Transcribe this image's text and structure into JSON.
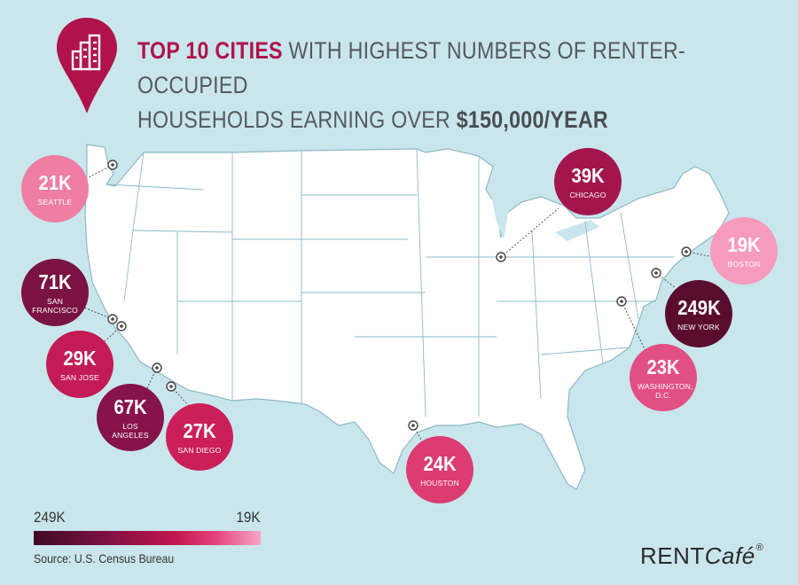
{
  "title": {
    "highlight": "TOP 10 CITIES",
    "line1_rest": " WITH HIGHEST NUMBERS OF RENTER-OCCUPIED",
    "line2_start": "HOUSEHOLDS EARNING OVER ",
    "line2_bold": "$150,000/YEAR"
  },
  "header_icon": "building-pin-icon",
  "cities": [
    {
      "id": "seattle",
      "value": "21K",
      "label": "SEATTLE",
      "color": "#ef7ea4"
    },
    {
      "id": "san-francisco",
      "value": "71K",
      "label": "SAN FRANCISCO",
      "color": "#7b1342"
    },
    {
      "id": "san-jose",
      "value": "29K",
      "label": "SAN JOSE",
      "color": "#c31b56"
    },
    {
      "id": "los-angeles",
      "value": "67K",
      "label": "LOS ANGELES",
      "color": "#86134a"
    },
    {
      "id": "san-diego",
      "value": "27K",
      "label": "SAN DIEGO",
      "color": "#cc1f5a"
    },
    {
      "id": "chicago",
      "value": "39K",
      "label": "CHICAGO",
      "color": "#a3164d"
    },
    {
      "id": "houston",
      "value": "24K",
      "label": "HOUSTON",
      "color": "#dc3c71"
    },
    {
      "id": "boston",
      "value": "19K",
      "label": "BOSTON",
      "color": "#f79bbd"
    },
    {
      "id": "new-york",
      "value": "249K",
      "label": "NEW YORK",
      "color": "#5a0c2f"
    },
    {
      "id": "washington-dc",
      "value": "23K",
      "label": "WASHINGTON, D.C.",
      "color": "#e24f84"
    }
  ],
  "legend": {
    "low_label": "249K",
    "high_label": "19K",
    "dark_color": "#3f0a25",
    "light_color": "#f7a6c6"
  },
  "source": "Source: U.S. Census Bureau",
  "brand": {
    "name": "RENT",
    "name_italic": "Café",
    "mark": "®"
  }
}
